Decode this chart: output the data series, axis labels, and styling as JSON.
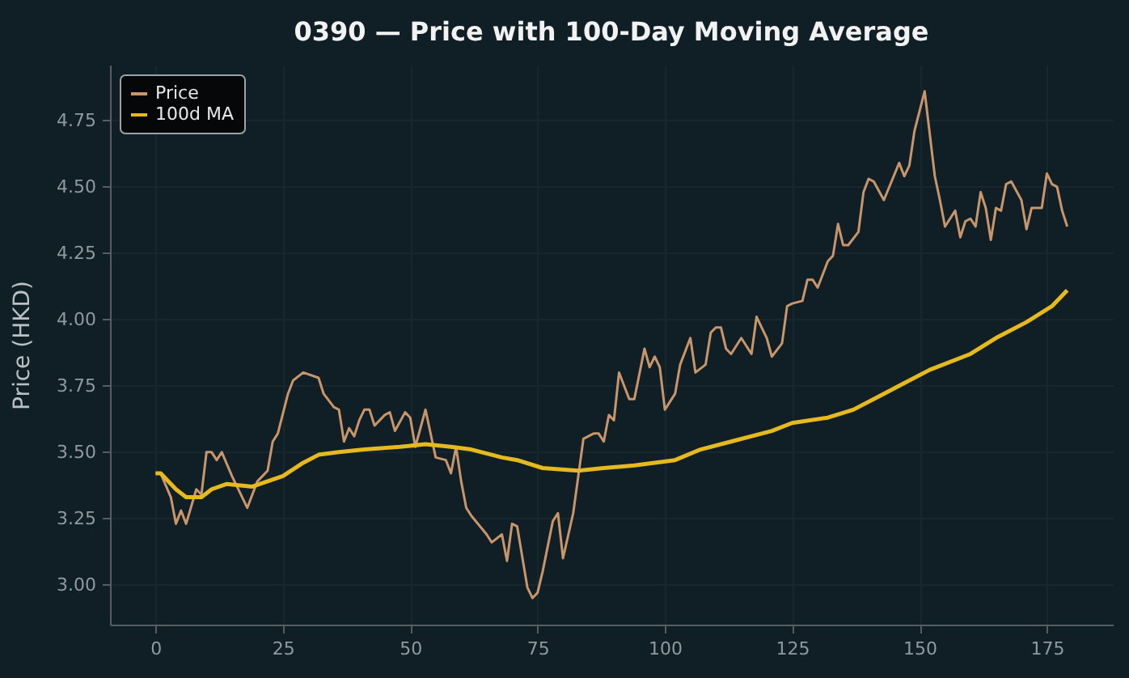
{
  "chart_data": {
    "type": "line",
    "title": "0390 — Price with 100-Day Moving Average",
    "ylabel": "Price (HKD)",
    "xlim": [
      -8.95,
      187.95
    ],
    "xticks": [
      0,
      25,
      50,
      75,
      100,
      125,
      150,
      175
    ],
    "ylim": [
      2.85,
      4.96
    ],
    "yticks": [
      {
        "value": 3,
        "label": "3.00"
      },
      3.25,
      {
        "value": 3.5,
        "label": "3.50"
      },
      3.75,
      {
        "value": 4,
        "label": "4.00"
      },
      4.25,
      {
        "value": 4.5,
        "label": "4.50"
      },
      4.75
    ],
    "grid": true,
    "legend": "top left",
    "line_style": "solid",
    "marker": "none",
    "series": [
      {
        "name": "Price",
        "color": "#c8966a",
        "x": [
          0,
          1,
          3,
          4,
          5,
          6,
          8,
          9,
          10,
          11,
          12,
          13,
          15,
          18,
          20,
          21,
          22,
          23,
          24,
          26,
          27,
          29,
          32,
          33,
          35,
          36,
          37,
          38,
          39,
          40,
          41,
          42,
          43,
          45,
          46,
          47,
          49,
          50,
          51,
          53,
          55,
          57,
          58,
          59,
          60,
          61,
          62,
          65,
          66,
          68,
          69,
          70,
          71,
          73,
          74,
          75,
          76,
          78,
          79,
          80,
          82,
          84,
          86,
          87,
          88,
          89,
          90,
          91,
          93,
          94,
          96,
          97,
          98,
          99,
          100,
          102,
          103,
          105,
          106,
          108,
          109,
          110,
          111,
          112,
          113,
          115,
          117,
          118,
          120,
          121,
          123,
          124,
          125,
          127,
          128,
          129,
          130,
          132,
          133,
          134,
          135,
          136,
          138,
          139,
          140,
          141,
          143,
          146,
          147,
          148,
          149,
          151,
          153,
          154,
          155,
          157,
          158,
          159,
          160,
          161,
          162,
          163,
          164,
          165,
          166,
          167,
          168,
          170,
          171,
          172,
          174,
          175,
          176,
          177,
          178,
          179
        ],
        "values": [
          3.42,
          3.42,
          3.33,
          3.23,
          3.28,
          3.23,
          3.36,
          3.34,
          3.5,
          3.5,
          3.47,
          3.5,
          3.41,
          3.29,
          3.39,
          3.41,
          3.43,
          3.54,
          3.57,
          3.72,
          3.77,
          3.8,
          3.78,
          3.72,
          3.67,
          3.66,
          3.54,
          3.59,
          3.56,
          3.62,
          3.66,
          3.66,
          3.6,
          3.64,
          3.65,
          3.58,
          3.65,
          3.63,
          3.52,
          3.66,
          3.48,
          3.47,
          3.42,
          3.52,
          3.39,
          3.29,
          3.26,
          3.19,
          3.16,
          3.19,
          3.09,
          3.23,
          3.22,
          2.99,
          2.95,
          2.97,
          3.05,
          3.24,
          3.27,
          3.1,
          3.27,
          3.55,
          3.57,
          3.57,
          3.54,
          3.64,
          3.62,
          3.8,
          3.7,
          3.7,
          3.89,
          3.82,
          3.86,
          3.82,
          3.66,
          3.72,
          3.83,
          3.93,
          3.8,
          3.83,
          3.95,
          3.97,
          3.97,
          3.89,
          3.87,
          3.93,
          3.87,
          4.01,
          3.93,
          3.86,
          3.91,
          4.05,
          4.06,
          4.07,
          4.15,
          4.15,
          4.12,
          4.22,
          4.24,
          4.36,
          4.28,
          4.28,
          4.33,
          4.48,
          4.53,
          4.52,
          4.45,
          4.59,
          4.54,
          4.58,
          4.71,
          4.86,
          4.54,
          4.45,
          4.35,
          4.41,
          4.31,
          4.37,
          4.38,
          4.35,
          4.48,
          4.42,
          4.3,
          4.42,
          4.41,
          4.51,
          4.52,
          4.45,
          4.34,
          4.42,
          4.42,
          4.55,
          4.51,
          4.5,
          4.41,
          4.35
        ]
      },
      {
        "name": "100d MA",
        "color": "#e6b91e",
        "x": [
          0,
          1,
          4,
          6,
          9,
          11,
          14,
          19,
          22,
          25,
          29,
          32,
          36,
          41,
          48,
          53,
          58,
          62,
          68,
          71,
          76,
          83,
          88,
          94,
          102,
          107,
          113,
          121,
          125,
          132,
          137,
          143,
          147,
          152,
          160,
          165,
          171,
          176,
          179
        ],
        "values": [
          3.42,
          3.42,
          3.36,
          3.33,
          3.33,
          3.36,
          3.38,
          3.37,
          3.39,
          3.41,
          3.46,
          3.49,
          3.5,
          3.51,
          3.52,
          3.53,
          3.52,
          3.51,
          3.48,
          3.47,
          3.44,
          3.43,
          3.44,
          3.45,
          3.47,
          3.51,
          3.54,
          3.58,
          3.61,
          3.63,
          3.66,
          3.72,
          3.76,
          3.81,
          3.87,
          3.93,
          3.99,
          4.05,
          4.11
        ]
      }
    ]
  }
}
